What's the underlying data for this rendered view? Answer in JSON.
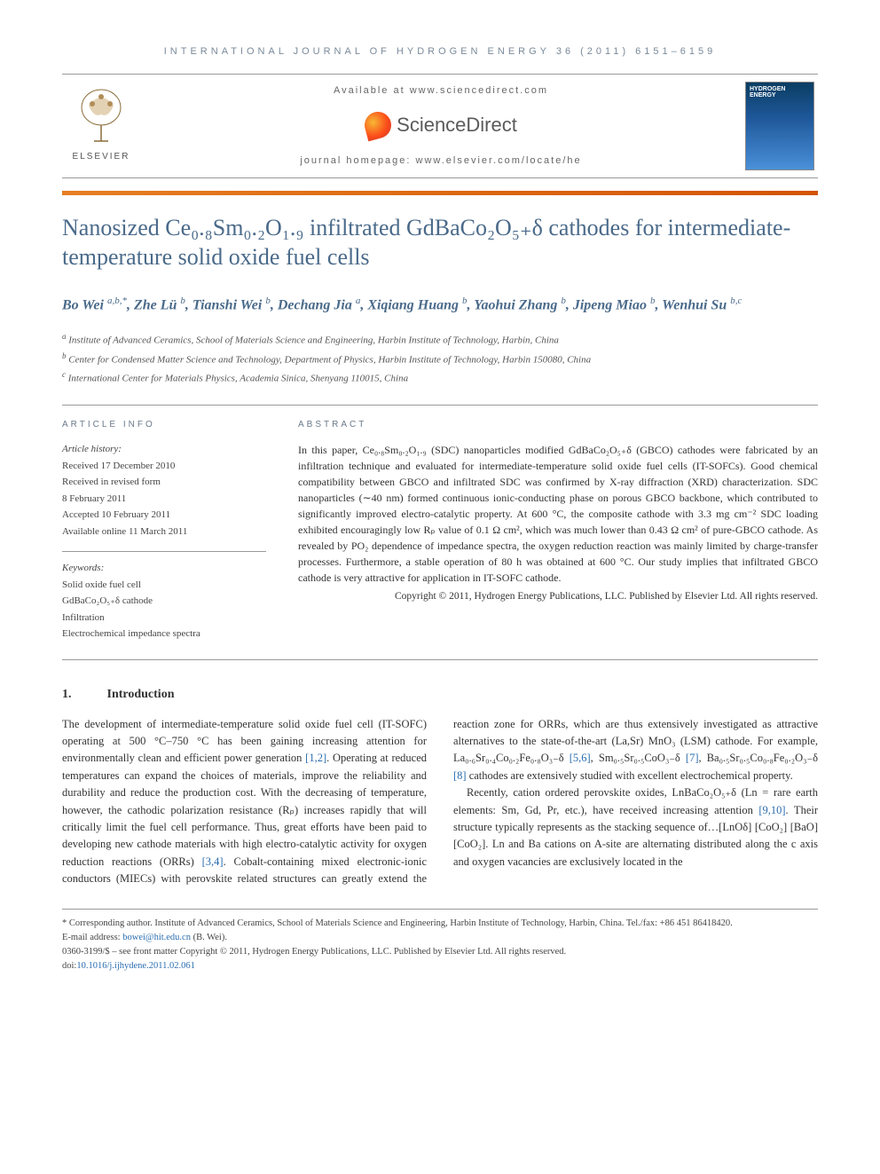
{
  "journal_header": "INTERNATIONAL JOURNAL OF HYDROGEN ENERGY 36 (2011) 6151–6159",
  "banner": {
    "available": "Available at www.sciencedirect.com",
    "sd_name": "ScienceDirect",
    "homepage": "journal homepage: www.elsevier.com/locate/he",
    "elsevier": "ELSEVIER",
    "cover_title": "HYDROGEN ENERGY"
  },
  "title": "Nanosized Ce₀.₈Sm₀.₂O₁.₉ infiltrated GdBaCo₂O₅₊δ cathodes for intermediate-temperature solid oxide fuel cells",
  "authors_html": "Bo Wei <sup>a,b,*</sup>, Zhe Lü <sup>b</sup>, Tianshi Wei <sup>b</sup>, Dechang Jia <sup>a</sup>, Xiqiang Huang <sup>b</sup>, Yaohui Zhang <sup>b</sup>, Jipeng Miao <sup>b</sup>, Wenhui Su <sup>b,c</sup>",
  "affiliations": [
    {
      "sup": "a",
      "text": "Institute of Advanced Ceramics, School of Materials Science and Engineering, Harbin Institute of Technology, Harbin, China"
    },
    {
      "sup": "b",
      "text": "Center for Condensed Matter Science and Technology, Department of Physics, Harbin Institute of Technology, Harbin 150080, China"
    },
    {
      "sup": "c",
      "text": "International Center for Materials Physics, Academia Sinica, Shenyang 110015, China"
    }
  ],
  "article_info": {
    "heading": "ARTICLE INFO",
    "history_label": "Article history:",
    "received": "Received 17 December 2010",
    "revised1": "Received in revised form",
    "revised2": "8 February 2011",
    "accepted": "Accepted 10 February 2011",
    "online": "Available online 11 March 2011",
    "keywords_label": "Keywords:",
    "keywords": [
      "Solid oxide fuel cell",
      "GdBaCo₂O₅₊δ cathode",
      "Infiltration",
      "Electrochemical impedance spectra"
    ]
  },
  "abstract": {
    "heading": "ABSTRACT",
    "body": "In this paper, Ce₀.₈Sm₀.₂O₁.₉ (SDC) nanoparticles modified GdBaCo₂O₅₊δ (GBCO) cathodes were fabricated by an infiltration technique and evaluated for intermediate-temperature solid oxide fuel cells (IT-SOFCs). Good chemical compatibility between GBCO and infiltrated SDC was confirmed by X-ray diffraction (XRD) characterization. SDC nanoparticles (∼40 nm) formed continuous ionic-conducting phase on porous GBCO backbone, which contributed to significantly improved electro-catalytic property. At 600 °C, the composite cathode with 3.3 mg cm⁻² SDC loading exhibited encouragingly low Rₚ value of 0.1 Ω cm², which was much lower than 0.43 Ω cm² of pure-GBCO cathode. As revealed by PO₂ dependence of impedance spectra, the oxygen reduction reaction was mainly limited by charge-transfer processes. Furthermore, a stable operation of 80 h was obtained at 600 °C. Our study implies that infiltrated GBCO cathode is very attractive for application in IT-SOFC cathode.",
    "copyright": "Copyright © 2011, Hydrogen Energy Publications, LLC. Published by Elsevier Ltd. All rights reserved."
  },
  "section": {
    "num": "1.",
    "title": "Introduction"
  },
  "body": {
    "p1": "The development of intermediate-temperature solid oxide fuel cell (IT-SOFC) operating at 500 °C–750 °C has been gaining increasing attention for environmentally clean and efficient power generation [1,2]. Operating at reduced temperatures can expand the choices of materials, improve the reliability and durability and reduce the production cost. With the decreasing of temperature, however, the cathodic polarization resistance (Rₚ) increases rapidly that will critically limit the fuel cell performance. Thus, great efforts have been paid to developing new cathode materials with high electro-catalytic activity for oxygen reduction reactions (ORRs) [3,4]. Cobalt-containing mixed electronic-ionic conductors (MIECs) with perovskite related structures can greatly extend the reaction zone for ORRs, which are thus extensively investigated as attractive alternatives to the state-of-the-art (La,Sr) MnO₃ (LSM) cathode. For example, La₀.₆Sr₀.₄Co₀.₂Fe₀.₈O₃₋δ [5,6], Sm₀.₅Sr₀.₅CoO₃₋δ [7], Ba₀.₅Sr₀.₅Co₀.₈Fe₀.₂O₃₋δ [8] cathodes are extensively studied with excellent electrochemical property.",
    "p2": "Recently, cation ordered perovskite oxides, LnBaCo₂O₅₊δ (Ln = rare earth elements: Sm, Gd, Pr, etc.), have received increasing attention [9,10]. Their structure typically represents as the stacking sequence of…[LnOδ] [CoO₂] [BaO] [CoO₂]. Ln and Ba cations on A-site are alternating distributed along the c axis and oxygen vacancies are exclusively located in the"
  },
  "footnotes": {
    "corr": "* Corresponding author. Institute of Advanced Ceramics, School of Materials Science and Engineering, Harbin Institute of Technology, Harbin, China. Tel./fax: +86 451 86418420.",
    "email_label": "E-mail address:",
    "email": "bowei@hit.edu.cn",
    "email_who": "(B. Wei).",
    "issn": "0360-3199/$ – see front matter Copyright © 2011, Hydrogen Energy Publications, LLC. Published by Elsevier Ltd. All rights reserved.",
    "doi_label": "doi:",
    "doi": "10.1016/j.ijhydene.2011.02.061"
  },
  "colors": {
    "accent": "#d35400",
    "title_blue": "#4a6a8a",
    "link_blue": "#2a6db0",
    "grey": "#7a8a9a"
  }
}
